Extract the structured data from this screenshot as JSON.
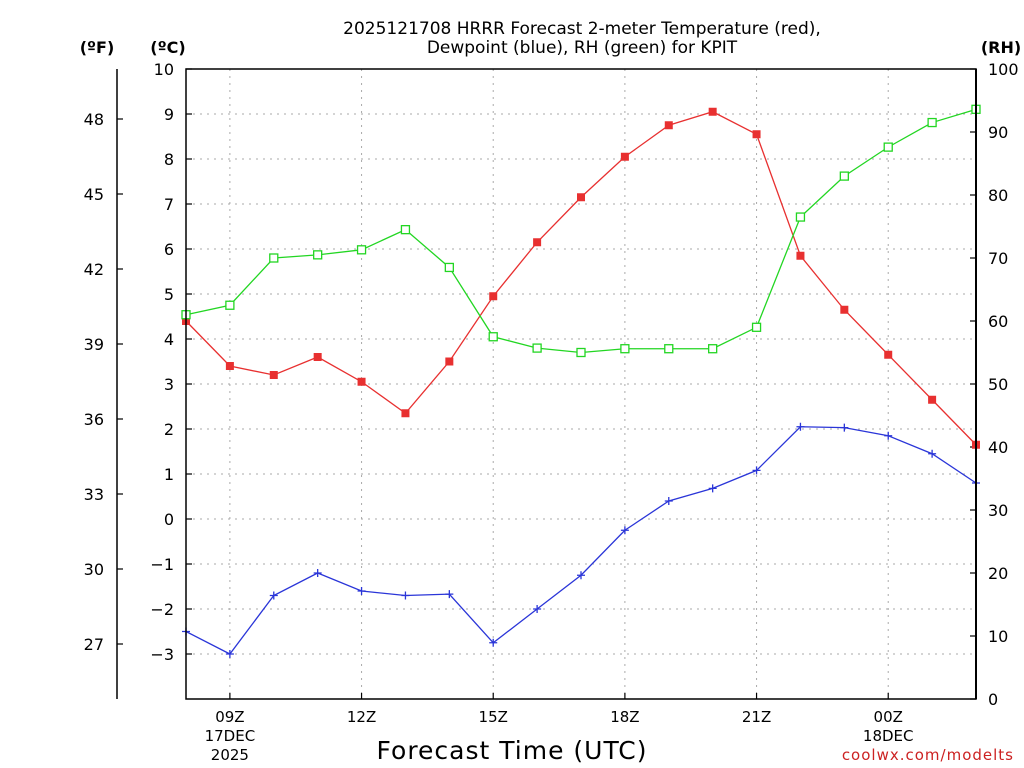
{
  "title_line1": "2025121708 HRRR Forecast 2-meter Temperature (red),",
  "title_line2": "Dewpoint (blue), RH (green) for KPIT",
  "credit": "coolwx.com/modelts",
  "colors": {
    "temperature": "#e83030",
    "dewpoint": "#2a35d8",
    "rh": "#22d622",
    "grid": "#aaaaaa"
  },
  "chart_data": {
    "type": "line",
    "title": "2025121708 HRRR Forecast 2-meter Temperature (red), Dewpoint (blue), RH (green) for KPIT",
    "xlabel": "Forecast Time (UTC)",
    "x_hours_utc": [
      8,
      9,
      10,
      11,
      12,
      13,
      14,
      15,
      16,
      17,
      18,
      19,
      20,
      21,
      22,
      23,
      24,
      25,
      26
    ],
    "x_ticks": [
      {
        "hour": 9,
        "label": "09Z",
        "sub1": "17DEC",
        "sub2": "2025"
      },
      {
        "hour": 12,
        "label": "12Z",
        "sub1": "",
        "sub2": ""
      },
      {
        "hour": 15,
        "label": "15Z",
        "sub1": "",
        "sub2": ""
      },
      {
        "hour": 18,
        "label": "18Z",
        "sub1": "",
        "sub2": ""
      },
      {
        "hour": 21,
        "label": "21Z",
        "sub1": "",
        "sub2": ""
      },
      {
        "hour": 24,
        "label": "00Z",
        "sub1": "18DEC",
        "sub2": ""
      }
    ],
    "xlim": [
      8,
      26
    ],
    "left_axis_c": {
      "label": "(ºC)",
      "ylim": [
        -4,
        10
      ],
      "ticks": [
        "10",
        "9",
        "8",
        "7",
        "6",
        "5",
        "4",
        "3",
        "2",
        "1",
        "0",
        "−1",
        "−2",
        "−3"
      ]
    },
    "left_axis_f": {
      "label": "(ºF)",
      "ticks": [
        48,
        45,
        42,
        39,
        36,
        33,
        30,
        27
      ]
    },
    "right_axis_rh": {
      "label": "(RH)",
      "ylim": [
        0,
        100
      ],
      "ticks": [
        100,
        90,
        80,
        70,
        60,
        50,
        40,
        30,
        20,
        10,
        0
      ]
    },
    "series": [
      {
        "name": "Temperature (°C)",
        "axis": "C",
        "marker": "filled-square",
        "values": [
          4.4,
          3.4,
          3.2,
          3.6,
          3.05,
          2.35,
          3.5,
          4.95,
          6.15,
          7.15,
          8.05,
          8.75,
          9.05,
          8.55,
          5.85,
          4.65,
          3.65,
          2.65,
          1.65
        ]
      },
      {
        "name": "Dewpoint (°C)",
        "axis": "C",
        "marker": "plus",
        "values": [
          -2.5,
          -3.0,
          -1.7,
          -1.2,
          -1.6,
          -1.7,
          -1.67,
          -2.75,
          -2.0,
          -1.25,
          -0.25,
          0.4,
          0.68,
          1.08,
          2.05,
          2.03,
          1.85,
          1.45,
          0.8
        ]
      },
      {
        "name": "RH (%)",
        "axis": "RH",
        "marker": "open-square",
        "values": [
          61,
          62.5,
          70,
          70.5,
          71.3,
          74.5,
          68.5,
          57.5,
          55.7,
          55,
          55.6,
          55.6,
          55.6,
          59,
          76.5,
          83,
          87.6,
          91.5,
          93.6
        ]
      }
    ]
  }
}
